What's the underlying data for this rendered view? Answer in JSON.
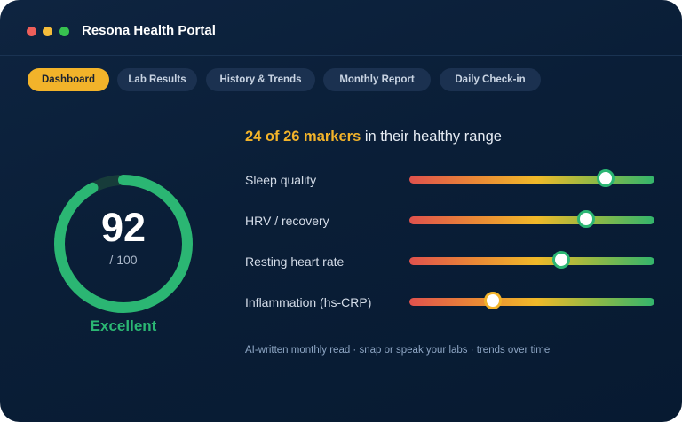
{
  "window": {
    "title": "Resona Health Portal",
    "controls": [
      "close",
      "minimize",
      "maximize"
    ]
  },
  "tabs": [
    {
      "label": "Dashboard",
      "active": true
    },
    {
      "label": "Lab Results",
      "active": false
    },
    {
      "label": "History & Trends",
      "active": false
    },
    {
      "label": "Monthly Report",
      "active": false
    },
    {
      "label": "Daily Check-in",
      "active": false
    }
  ],
  "score": {
    "value": "92",
    "max": "/ 100",
    "status": "Excellent",
    "fraction": 0.92
  },
  "summary": {
    "highlight": "24 of 26 markers",
    "rest": " in their healthy range"
  },
  "metrics": [
    {
      "label": "Sleep quality",
      "level": 0.8
    },
    {
      "label": "HRV / recovery",
      "level": 0.72
    },
    {
      "label": "Resting heart rate",
      "level": 0.62
    },
    {
      "label": "Inflammation (hs-CRP)",
      "level": 0.34
    }
  ],
  "footer": "AI-written monthly read · snap or speak your labs · trends over time",
  "colors": {
    "accent": "#f2b32a",
    "good": "#2bb673",
    "background": "#0a1e37",
    "range_low": "#e0524d",
    "range_mid": "#f0b929",
    "range_high": "#33b56c"
  }
}
